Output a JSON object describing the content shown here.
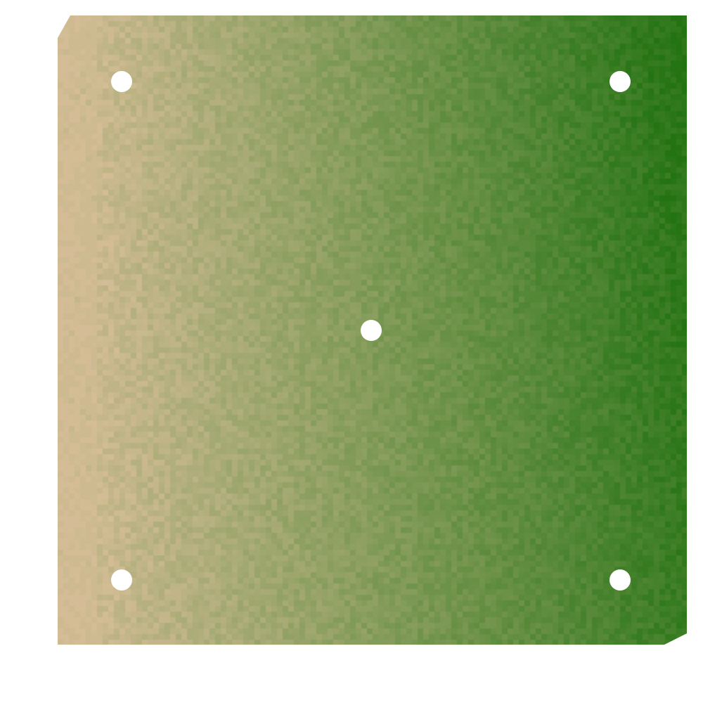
{
  "board": {
    "colors": {
      "left_edge": "#d4bd96",
      "right_edge": "#237312",
      "background": "#ffffff",
      "marker": "#ffffff"
    },
    "texture": "pixel-noise",
    "markers": [
      {
        "name": "top-left"
      },
      {
        "name": "top-right"
      },
      {
        "name": "center"
      },
      {
        "name": "bottom-left"
      },
      {
        "name": "bottom-right"
      }
    ]
  }
}
